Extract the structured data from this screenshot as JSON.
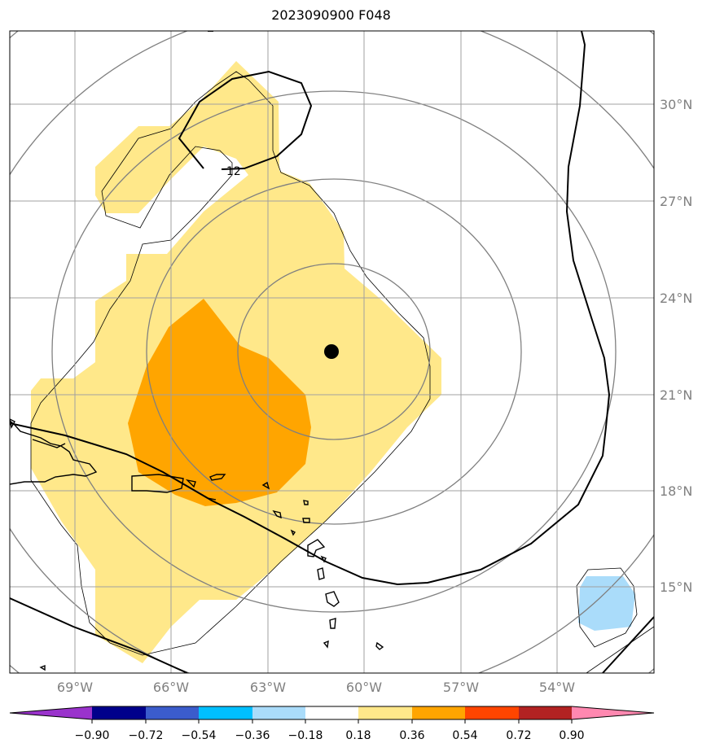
{
  "title": "2023090900 F048",
  "map": {
    "lon_ticks": [
      "69°W",
      "66°W",
      "63°W",
      "60°W",
      "57°W",
      "54°W"
    ],
    "lat_ticks": [
      "30°N",
      "27°N",
      "24°N",
      "21°N",
      "18°N",
      "15°N"
    ],
    "contour_label": "12",
    "storm_center": {
      "lon": -61.0,
      "lat": 22.3
    },
    "colors": {
      "fill_light": "#ffe88a",
      "fill_orange": "#ffa500",
      "fill_blue": "#aadcfa",
      "grid": "#a0a0a0",
      "range_rings": "#808080"
    }
  },
  "colorbar": {
    "ticks": [
      "−0.90",
      "−0.72",
      "−0.54",
      "−0.36",
      "−0.18",
      "0.18",
      "0.36",
      "0.54",
      "0.72",
      "0.90"
    ],
    "colors": [
      "#9a33cc",
      "#00008b",
      "#3b5ccc",
      "#00bfff",
      "#aadcfa",
      "#ffffff",
      "#ffe88a",
      "#ffa500",
      "#ff4500",
      "#b22222",
      "#ff88b0"
    ]
  }
}
